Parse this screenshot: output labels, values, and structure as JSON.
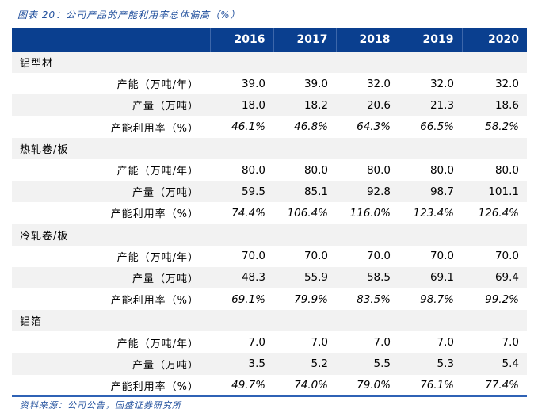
{
  "title": "图表 20：公司产品的产能利用率总体偏高（%）",
  "years": [
    "2016",
    "2017",
    "2018",
    "2019",
    "2020"
  ],
  "sections": [
    {
      "name": "铝型材",
      "rows": [
        {
          "label": "产能（万吨/年）",
          "values": [
            "39.0",
            "39.0",
            "32.0",
            "32.0",
            "32.0"
          ]
        },
        {
          "label": "产量（万吨）",
          "values": [
            "18.0",
            "18.2",
            "20.6",
            "21.3",
            "18.6"
          ]
        },
        {
          "label": "产能利用率（%）",
          "values": [
            "46.1%",
            "46.8%",
            "64.3%",
            "66.5%",
            "58.2%"
          ]
        }
      ]
    },
    {
      "name": "热轧卷/板",
      "rows": [
        {
          "label": "产能（万吨/年）",
          "values": [
            "80.0",
            "80.0",
            "80.0",
            "80.0",
            "80.0"
          ]
        },
        {
          "label": "产量（万吨）",
          "values": [
            "59.5",
            "85.1",
            "92.8",
            "98.7",
            "101.1"
          ]
        },
        {
          "label": "产能利用率（%）",
          "values": [
            "74.4%",
            "106.4%",
            "116.0%",
            "123.4%",
            "126.4%"
          ]
        }
      ]
    },
    {
      "name": "冷轧卷/板",
      "rows": [
        {
          "label": "产能（万吨/年）",
          "values": [
            "70.0",
            "70.0",
            "70.0",
            "70.0",
            "70.0"
          ]
        },
        {
          "label": "产量（万吨）",
          "values": [
            "48.3",
            "55.9",
            "58.5",
            "69.1",
            "69.4"
          ]
        },
        {
          "label": "产能利用率（%）",
          "values": [
            "69.1%",
            "79.9%",
            "83.5%",
            "98.7%",
            "99.2%"
          ]
        }
      ]
    },
    {
      "name": "铝箔",
      "rows": [
        {
          "label": "产能（万吨/年）",
          "values": [
            "7.0",
            "7.0",
            "7.0",
            "7.0",
            "7.0"
          ]
        },
        {
          "label": "产量（万吨）",
          "values": [
            "3.5",
            "5.2",
            "5.5",
            "5.3",
            "5.4"
          ]
        },
        {
          "label": "产能利用率（%）",
          "values": [
            "49.7%",
            "74.0%",
            "79.0%",
            "76.1%",
            "77.4%"
          ]
        }
      ]
    }
  ],
  "source": "资料来源：公司公告，国盛证券研究所"
}
